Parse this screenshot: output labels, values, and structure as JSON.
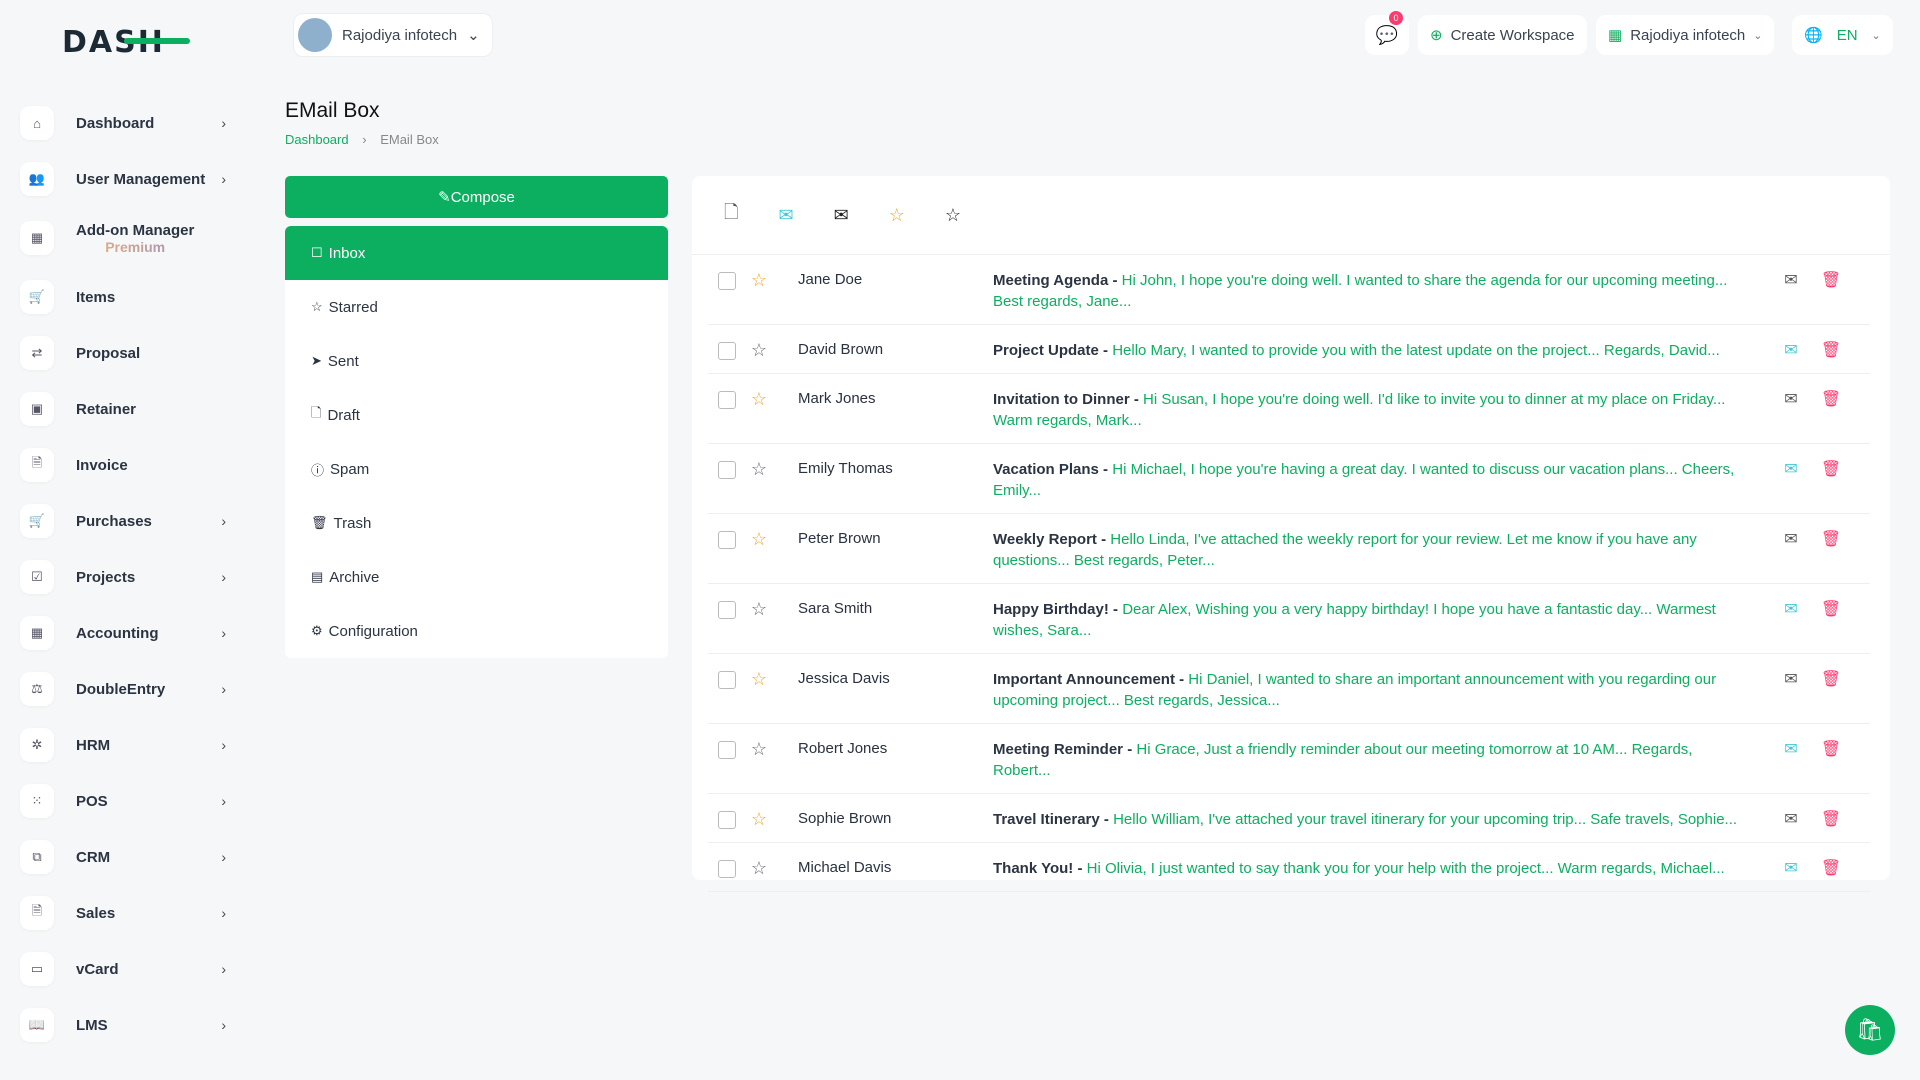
{
  "header": {
    "logo_text": "DASH",
    "workspace": "Rajodiya infotech",
    "notifications": "0",
    "create_workspace": "Create Workspace",
    "company": "Rajodiya infotech",
    "language": "EN"
  },
  "sidebar": {
    "items": [
      {
        "label": "Dashboard",
        "icon": "home-icon",
        "arrow": true
      },
      {
        "label": "User Management",
        "icon": "users-icon",
        "arrow": true
      },
      {
        "label": "Add-on Manager",
        "sub": "Premium",
        "icon": "apps-icon",
        "arrow": false
      },
      {
        "label": "Items",
        "icon": "cart-icon",
        "arrow": false
      },
      {
        "label": "Proposal",
        "icon": "proposal-icon",
        "arrow": false
      },
      {
        "label": "Retainer",
        "icon": "retainer-icon",
        "arrow": false
      },
      {
        "label": "Invoice",
        "icon": "invoice-icon",
        "arrow": false
      },
      {
        "label": "Purchases",
        "icon": "cart-icon",
        "arrow": true
      },
      {
        "label": "Projects",
        "icon": "checkbox-icon",
        "arrow": true
      },
      {
        "label": "Accounting",
        "icon": "layout-icon",
        "arrow": true
      },
      {
        "label": "DoubleEntry",
        "icon": "scale-icon",
        "arrow": true
      },
      {
        "label": "HRM",
        "icon": "hrm-icon",
        "arrow": true
      },
      {
        "label": "POS",
        "icon": "grid-icon",
        "arrow": true
      },
      {
        "label": "CRM",
        "icon": "crm-icon",
        "arrow": true
      },
      {
        "label": "Sales",
        "icon": "file-icon",
        "arrow": true
      },
      {
        "label": "vCard",
        "icon": "card-icon",
        "arrow": true
      },
      {
        "label": "LMS",
        "icon": "book-icon",
        "arrow": true
      }
    ]
  },
  "page": {
    "title": "EMail Box",
    "breadcrumb": [
      "Dashboard",
      "EMail Box"
    ]
  },
  "compose_label": "Compose",
  "folders": [
    {
      "label": "Inbox",
      "icon": "☐"
    },
    {
      "label": "Starred",
      "icon": "☆"
    },
    {
      "label": "Sent",
      "icon": "➤"
    },
    {
      "label": "Draft",
      "icon": "🗋"
    },
    {
      "label": "Spam",
      "icon": "ⓘ"
    },
    {
      "label": "Trash",
      "icon": "🗑"
    },
    {
      "label": "Archive",
      "icon": "▤"
    },
    {
      "label": "Configuration",
      "icon": "⚙"
    }
  ],
  "colors": {
    "accent": "#0caf60",
    "danger": "#ff3a6e",
    "star": "#f7a325",
    "unread": "#3ec9d6"
  },
  "emails": [
    {
      "from": "Jane Doe",
      "subject": "Meeting Agenda",
      "preview": "Hi John, I hope you're doing well. I wanted to share the agenda for our upcoming meeting... Best regards, Jane...",
      "starred": true,
      "read": true
    },
    {
      "from": "David Brown",
      "subject": "Project Update",
      "preview": "Hello Mary, I wanted to provide you with the latest update on the project... Regards, David...",
      "starred": false,
      "read": false
    },
    {
      "from": "Mark Jones",
      "subject": "Invitation to Dinner",
      "preview": "Hi Susan, I hope you're doing well. I'd like to invite you to dinner at my place on Friday... Warm regards, Mark...",
      "starred": true,
      "read": true
    },
    {
      "from": "Emily Thomas",
      "subject": "Vacation Plans",
      "preview": "Hi Michael, I hope you're having a great day. I wanted to discuss our vacation plans... Cheers, Emily...",
      "starred": false,
      "read": false
    },
    {
      "from": "Peter Brown",
      "subject": "Weekly Report",
      "preview": "Hello Linda, I've attached the weekly report for your review. Let me know if you have any questions... Best regards, Peter...",
      "starred": true,
      "read": true
    },
    {
      "from": "Sara Smith",
      "subject": "Happy Birthday!",
      "preview": "Dear Alex, Wishing you a very happy birthday! I hope you have a fantastic day... Warmest wishes, Sara...",
      "starred": false,
      "read": false
    },
    {
      "from": "Jessica Davis",
      "subject": "Important Announcement",
      "preview": "Hi Daniel, I wanted to share an important announcement with you regarding our upcoming project... Best regards, Jessica...",
      "starred": true,
      "read": true
    },
    {
      "from": "Robert Jones",
      "subject": "Meeting Reminder",
      "preview": "Hi Grace, Just a friendly reminder about our meeting tomorrow at 10 AM... Regards, Robert...",
      "starred": false,
      "read": false
    },
    {
      "from": "Sophie Brown",
      "subject": "Travel Itinerary",
      "preview": "Hello William, I've attached your travel itinerary for your upcoming trip... Safe travels, Sophie...",
      "starred": true,
      "read": true
    },
    {
      "from": "Michael Davis",
      "subject": "Thank You!",
      "preview": "Hi Olivia, I just wanted to say thank you for your help with the project... Warm regards, Michael...",
      "starred": false,
      "read": false
    }
  ]
}
